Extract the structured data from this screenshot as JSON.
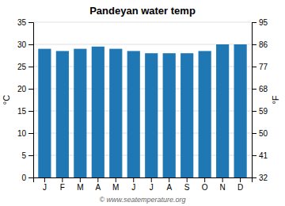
{
  "chart_data": {
    "type": "bar",
    "title": "Pandeyan water temp",
    "categories": [
      "J",
      "F",
      "M",
      "A",
      "M",
      "J",
      "J",
      "A",
      "S",
      "O",
      "N",
      "D"
    ],
    "values": [
      29.0,
      28.5,
      29.0,
      29.5,
      29.0,
      28.5,
      28.0,
      28.0,
      28.0,
      28.5,
      30.0,
      30.0
    ],
    "ylabel": "°C",
    "y2label": "°F",
    "ylim": [
      0,
      35
    ],
    "yticks": [
      0,
      5,
      10,
      15,
      20,
      25,
      30,
      35
    ],
    "y2lim": [
      32,
      95
    ],
    "y2ticks": [
      32,
      41,
      50,
      59,
      68,
      77,
      86,
      95
    ],
    "grid": true,
    "annotations": [
      "© www.seatemperature.org"
    ]
  }
}
